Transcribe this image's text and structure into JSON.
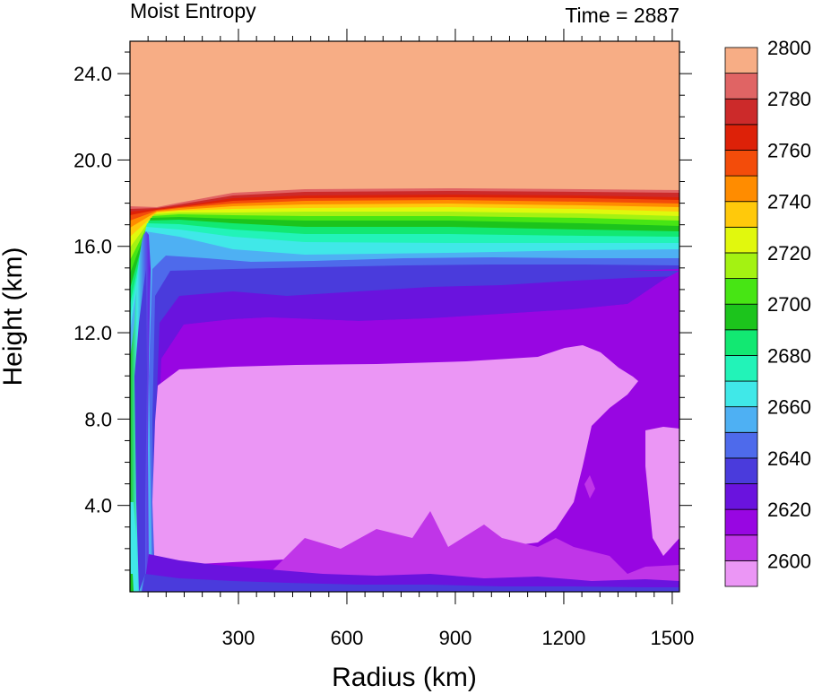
{
  "chart_data": {
    "type": "heatmap",
    "title": "Moist Entropy",
    "subtitle": "Time = 2887",
    "xlabel": "Radius (km)",
    "ylabel": "Height (km)",
    "xlim": [
      0,
      1520
    ],
    "ylim": [
      0,
      25.5
    ],
    "x_ticks": [
      "300",
      "600",
      "900",
      "1200",
      "1500"
    ],
    "y_ticks": [
      "4.0",
      "8.0",
      "12.0",
      "16.0",
      "20.0",
      "24.0"
    ],
    "colorbar": {
      "labels": [
        "2600",
        "2620",
        "2640",
        "2660",
        "2680",
        "2700",
        "2720",
        "2740",
        "2760",
        "2780",
        "2800"
      ],
      "colors": [
        "#EB96F5",
        "#C035E8",
        "#9806E2",
        "#6A13DE",
        "#4A3BDC",
        "#4E6AEB",
        "#4EB0F3",
        "#40E8E8",
        "#22F3B8",
        "#12E872",
        "#1CC41C",
        "#47E514",
        "#A4F212",
        "#E1F80D",
        "#FFC90B",
        "#FF8C00",
        "#F34C0A",
        "#DD2108",
        "#CC2A2A",
        "#E06464",
        "#F7AD85"
      ]
    }
  }
}
